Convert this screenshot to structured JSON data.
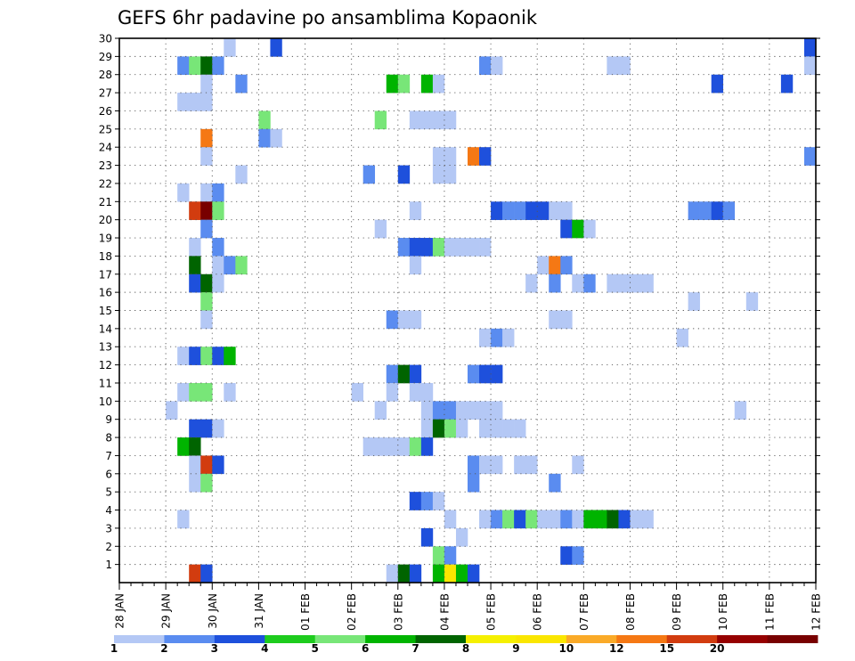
{
  "chart_data": {
    "type": "heatmap",
    "title": "GEFS 6hr padavine po ansamblima Kopaonik",
    "xlabel": "",
    "ylabel": "",
    "x_ticks": [
      "28 JAN",
      "29 JAN",
      "30 JAN",
      "31 JAN",
      "01 FEB",
      "02 FEB",
      "03 FEB",
      "04 FEB",
      "05 FEB",
      "06 FEB",
      "07 FEB",
      "08 FEB",
      "09 FEB",
      "10 FEB",
      "11 FEB",
      "12 FEB"
    ],
    "x_range_steps": [
      0,
      60
    ],
    "steps_per_day": 4,
    "y_ticks": [
      "1",
      "2",
      "3",
      "4",
      "5",
      "6",
      "7",
      "8",
      "9",
      "10",
      "11",
      "12",
      "13",
      "14",
      "15",
      "16",
      "17",
      "18",
      "19",
      "20",
      "21",
      "22",
      "23",
      "24",
      "25",
      "26",
      "27",
      "28",
      "29",
      "30"
    ],
    "y_range": [
      0,
      30
    ],
    "grid": true,
    "colorbar": {
      "placement": "bottom",
      "labels": [
        "1",
        "2",
        "3",
        "4",
        "5",
        "6",
        "7",
        "8",
        "9",
        "10",
        "12",
        "15",
        "20"
      ],
      "colors": [
        "#b4c8f5",
        "#5a8cf0",
        "#1e50dc",
        "#1ecc1e",
        "#78e678",
        "#00b400",
        "#006400",
        "#f5f000",
        "#fae600",
        "#faaa28",
        "#f57814",
        "#d23c0f",
        "#960000",
        "#780000"
      ]
    },
    "levels": {
      "1": "#b4c8f5",
      "2": "#5a8cf0",
      "3": "#1e50dc",
      "4": "#78e678",
      "5": "#00b400",
      "6": "#006400",
      "7": "#fae600",
      "10": "#f57814",
      "15": "#d23c0f",
      "20": "#780000"
    },
    "cells": [
      [
        9,
        30,
        1
      ],
      [
        13,
        30,
        3
      ],
      [
        59,
        30,
        3
      ],
      [
        5,
        29,
        2
      ],
      [
        6,
        29,
        4
      ],
      [
        7,
        29,
        6
      ],
      [
        8,
        29,
        2
      ],
      [
        31,
        29,
        2
      ],
      [
        32,
        29,
        1
      ],
      [
        42,
        29,
        1
      ],
      [
        43,
        29,
        1
      ],
      [
        59,
        29,
        1
      ],
      [
        7,
        28,
        1
      ],
      [
        10,
        28,
        2
      ],
      [
        23,
        28,
        5
      ],
      [
        24,
        28,
        4
      ],
      [
        26,
        28,
        5
      ],
      [
        27,
        28,
        1
      ],
      [
        51,
        28,
        3
      ],
      [
        57,
        28,
        3
      ],
      [
        5,
        27,
        1
      ],
      [
        6,
        27,
        1
      ],
      [
        7,
        27,
        1
      ],
      [
        12,
        26,
        4
      ],
      [
        22,
        26,
        4
      ],
      [
        25,
        26,
        1
      ],
      [
        26,
        26,
        1
      ],
      [
        27,
        26,
        1
      ],
      [
        28,
        26,
        1
      ],
      [
        7,
        25,
        10
      ],
      [
        12,
        25,
        2
      ],
      [
        13,
        25,
        1
      ],
      [
        7,
        24,
        1
      ],
      [
        27,
        24,
        1
      ],
      [
        28,
        24,
        1
      ],
      [
        30,
        24,
        10
      ],
      [
        31,
        24,
        3
      ],
      [
        59,
        24,
        2
      ],
      [
        10,
        23,
        1
      ],
      [
        21,
        23,
        2
      ],
      [
        24,
        23,
        3
      ],
      [
        27,
        23,
        1
      ],
      [
        28,
        23,
        1
      ],
      [
        5,
        22,
        1
      ],
      [
        7,
        22,
        1
      ],
      [
        8,
        22,
        2
      ],
      [
        6,
        21,
        15
      ],
      [
        7,
        21,
        20
      ],
      [
        8,
        21,
        4
      ],
      [
        25,
        21,
        1
      ],
      [
        32,
        21,
        3
      ],
      [
        33,
        21,
        2
      ],
      [
        34,
        21,
        2
      ],
      [
        35,
        21,
        3
      ],
      [
        36,
        21,
        3
      ],
      [
        37,
        21,
        1
      ],
      [
        38,
        21,
        1
      ],
      [
        49,
        21,
        2
      ],
      [
        50,
        21,
        2
      ],
      [
        51,
        21,
        3
      ],
      [
        52,
        21,
        2
      ],
      [
        7,
        20,
        2
      ],
      [
        22,
        20,
        1
      ],
      [
        38,
        20,
        3
      ],
      [
        39,
        20,
        5
      ],
      [
        40,
        20,
        1
      ],
      [
        6,
        19,
        1
      ],
      [
        8,
        19,
        2
      ],
      [
        24,
        19,
        2
      ],
      [
        25,
        19,
        3
      ],
      [
        26,
        19,
        3
      ],
      [
        27,
        19,
        4
      ],
      [
        28,
        19,
        1
      ],
      [
        29,
        19,
        1
      ],
      [
        30,
        19,
        1
      ],
      [
        31,
        19,
        1
      ],
      [
        6,
        18,
        6
      ],
      [
        8,
        18,
        1
      ],
      [
        9,
        18,
        2
      ],
      [
        10,
        18,
        4
      ],
      [
        25,
        18,
        1
      ],
      [
        36,
        18,
        1
      ],
      [
        37,
        18,
        10
      ],
      [
        38,
        18,
        2
      ],
      [
        6,
        17,
        3
      ],
      [
        7,
        17,
        6
      ],
      [
        8,
        17,
        1
      ],
      [
        35,
        17,
        1
      ],
      [
        37,
        17,
        2
      ],
      [
        39,
        17,
        1
      ],
      [
        40,
        17,
        2
      ],
      [
        42,
        17,
        1
      ],
      [
        43,
        17,
        1
      ],
      [
        44,
        17,
        1
      ],
      [
        45,
        17,
        1
      ],
      [
        7,
        16,
        4
      ],
      [
        49,
        16,
        1
      ],
      [
        54,
        16,
        1
      ],
      [
        7,
        15,
        1
      ],
      [
        23,
        15,
        2
      ],
      [
        24,
        15,
        1
      ],
      [
        25,
        15,
        1
      ],
      [
        37,
        15,
        1
      ],
      [
        38,
        15,
        1
      ],
      [
        31,
        14,
        1
      ],
      [
        32,
        14,
        2
      ],
      [
        33,
        14,
        1
      ],
      [
        48,
        14,
        1
      ],
      [
        5,
        13,
        1
      ],
      [
        6,
        13,
        3
      ],
      [
        7,
        13,
        4
      ],
      [
        8,
        13,
        3
      ],
      [
        9,
        13,
        5
      ],
      [
        23,
        12,
        2
      ],
      [
        24,
        12,
        6
      ],
      [
        25,
        12,
        3
      ],
      [
        30,
        12,
        2
      ],
      [
        31,
        12,
        3
      ],
      [
        32,
        12,
        3
      ],
      [
        5,
        11,
        1
      ],
      [
        6,
        11,
        4
      ],
      [
        7,
        11,
        4
      ],
      [
        9,
        11,
        1
      ],
      [
        20,
        11,
        1
      ],
      [
        23,
        11,
        1
      ],
      [
        25,
        11,
        1
      ],
      [
        26,
        11,
        1
      ],
      [
        4,
        10,
        1
      ],
      [
        22,
        10,
        1
      ],
      [
        26,
        10,
        1
      ],
      [
        27,
        10,
        2
      ],
      [
        28,
        10,
        2
      ],
      [
        29,
        10,
        1
      ],
      [
        30,
        10,
        1
      ],
      [
        31,
        10,
        1
      ],
      [
        32,
        10,
        1
      ],
      [
        53,
        10,
        1
      ],
      [
        6,
        9,
        3
      ],
      [
        7,
        9,
        3
      ],
      [
        8,
        9,
        1
      ],
      [
        26,
        9,
        1
      ],
      [
        27,
        9,
        6
      ],
      [
        28,
        9,
        4
      ],
      [
        29,
        9,
        1
      ],
      [
        31,
        9,
        1
      ],
      [
        32,
        9,
        1
      ],
      [
        33,
        9,
        1
      ],
      [
        34,
        9,
        1
      ],
      [
        5,
        8,
        5
      ],
      [
        6,
        8,
        6
      ],
      [
        21,
        8,
        1
      ],
      [
        22,
        8,
        1
      ],
      [
        23,
        8,
        1
      ],
      [
        24,
        8,
        1
      ],
      [
        25,
        8,
        4
      ],
      [
        26,
        8,
        3
      ],
      [
        6,
        7,
        1
      ],
      [
        7,
        7,
        15
      ],
      [
        8,
        7,
        3
      ],
      [
        30,
        7,
        2
      ],
      [
        31,
        7,
        1
      ],
      [
        32,
        7,
        1
      ],
      [
        34,
        7,
        1
      ],
      [
        35,
        7,
        1
      ],
      [
        39,
        7,
        1
      ],
      [
        6,
        6,
        1
      ],
      [
        7,
        6,
        4
      ],
      [
        30,
        6,
        2
      ],
      [
        37,
        6,
        2
      ],
      [
        25,
        5,
        3
      ],
      [
        26,
        5,
        2
      ],
      [
        27,
        5,
        1
      ],
      [
        5,
        4,
        1
      ],
      [
        28,
        4,
        1
      ],
      [
        31,
        4,
        1
      ],
      [
        32,
        4,
        2
      ],
      [
        33,
        4,
        4
      ],
      [
        34,
        4,
        3
      ],
      [
        35,
        4,
        4
      ],
      [
        36,
        4,
        1
      ],
      [
        37,
        4,
        1
      ],
      [
        38,
        4,
        2
      ],
      [
        39,
        4,
        1
      ],
      [
        40,
        4,
        5
      ],
      [
        41,
        4,
        5
      ],
      [
        42,
        4,
        6
      ],
      [
        43,
        4,
        3
      ],
      [
        44,
        4,
        1
      ],
      [
        45,
        4,
        1
      ],
      [
        26,
        3,
        3
      ],
      [
        29,
        3,
        1
      ],
      [
        27,
        2,
        4
      ],
      [
        28,
        2,
        2
      ],
      [
        38,
        2,
        3
      ],
      [
        39,
        2,
        2
      ],
      [
        6,
        1,
        15
      ],
      [
        7,
        1,
        3
      ],
      [
        23,
        1,
        1
      ],
      [
        24,
        1,
        6
      ],
      [
        25,
        1,
        3
      ],
      [
        27,
        1,
        5
      ],
      [
        28,
        1,
        7
      ],
      [
        29,
        1,
        5
      ],
      [
        30,
        1,
        3
      ]
    ]
  }
}
